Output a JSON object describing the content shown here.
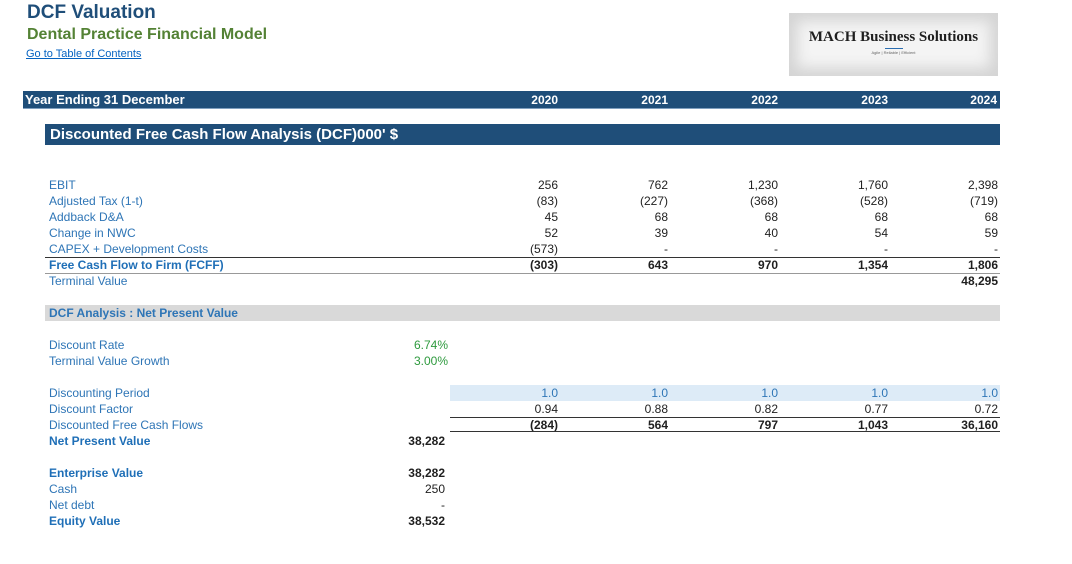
{
  "header": {
    "title": "DCF Valuation",
    "subtitle": "Dental Practice Financial Model",
    "toc_link": "Go to Table of Contents",
    "logo_name": "MACH Business Solutions",
    "logo_tagline": "Agile | Reliable | Efficient"
  },
  "year_bar": {
    "label": "Year Ending 31 December",
    "years": [
      "2020",
      "2021",
      "2022",
      "2023",
      "2024"
    ]
  },
  "section_title": "Discounted Free Cash Flow Analysis (DCF)000' $",
  "fcf_rows": [
    {
      "label": "EBIT",
      "values": [
        "256",
        "762",
        "1,230",
        "1,760",
        "2,398"
      ]
    },
    {
      "label": "Adjusted Tax (1-t)",
      "values": [
        "(83)",
        "(227)",
        "(368)",
        "(528)",
        "(719)"
      ]
    },
    {
      "label": "Addback D&A",
      "values": [
        "45",
        "68",
        "68",
        "68",
        "68"
      ]
    },
    {
      "label": "Change in NWC",
      "values": [
        "52",
        "39",
        "40",
        "54",
        "59"
      ]
    },
    {
      "label": "CAPEX + Development Costs",
      "values": [
        "(573)",
        "-",
        "-",
        "-",
        "-"
      ]
    },
    {
      "label": "Free Cash Flow to Firm (FCFF)",
      "values": [
        "(303)",
        "643",
        "970",
        "1,354",
        "1,806"
      ]
    },
    {
      "label": "Terminal Value",
      "values": [
        "",
        "",
        "",
        "",
        "48,295"
      ]
    }
  ],
  "npv_section": {
    "title": "DCF Analysis : Net Present Value",
    "discount_rate_label": "Discount Rate",
    "discount_rate": "6.74%",
    "tv_growth_label": "Terminal Value Growth",
    "tv_growth": "3.00%",
    "periods_label": "Discounting Period",
    "periods": [
      "1.0",
      "1.0",
      "1.0",
      "1.0",
      "1.0"
    ],
    "factor_label": "Discount Factor",
    "factors": [
      "0.94",
      "0.88",
      "0.82",
      "0.77",
      "0.72"
    ],
    "dfcf_label": "Discounted Free Cash Flows",
    "dfcf": [
      "(284)",
      "564",
      "797",
      "1,043",
      "36,160"
    ],
    "npv_label": "Net Present Value",
    "npv": "38,282"
  },
  "equity": {
    "ev_label": "Enterprise Value",
    "ev": "38,282",
    "cash_label": "Cash",
    "cash": "250",
    "net_debt_label": "Net debt",
    "net_debt": "-",
    "equity_label": "Equity Value",
    "equity_value": "38,532"
  }
}
